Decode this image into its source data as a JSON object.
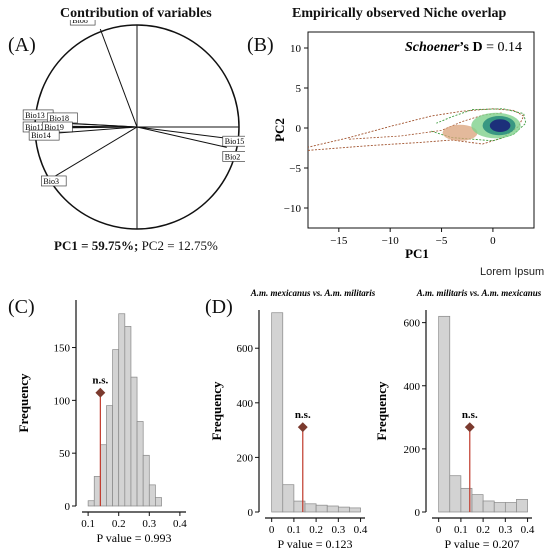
{
  "panels": {
    "a_letter": "(A)",
    "b_letter": "(B)",
    "c_letter": "(C)",
    "d_letter": "(D)"
  },
  "corner_label": "Lorem Ipsum",
  "chart_data": [
    {
      "type": "scatter",
      "title": "Contribution of variables",
      "variables": [
        {
          "name": "Bio8",
          "pc1": -0.36,
          "pc2": 0.96
        },
        {
          "name": "Bio13",
          "pc1": -0.92,
          "pc2": 0.05
        },
        {
          "name": "Bio18",
          "pc1": -0.8,
          "pc2": 0.04
        },
        {
          "name": "Bio12",
          "pc1": -0.94,
          "pc2": 0.01
        },
        {
          "name": "Bio19",
          "pc1": -0.83,
          "pc2": -0.01
        },
        {
          "name": "Bio14",
          "pc1": -0.92,
          "pc2": -0.07
        },
        {
          "name": "Bio15",
          "pc1": 0.88,
          "pc2": -0.11
        },
        {
          "name": "Bio2",
          "pc1": 0.88,
          "pc2": -0.2
        },
        {
          "name": "Bio3",
          "pc1": -0.8,
          "pc2": -0.48
        }
      ],
      "footer_pc1": "PC1 = 59.75%;",
      "footer_pc2": "PC2 = 12.75%"
    },
    {
      "type": "area",
      "title": "Empirically observed Niche overlap",
      "xlabel": "PC1",
      "ylabel": "PC2",
      "xlim": [
        -18,
        4
      ],
      "ylim": [
        -12.5,
        12
      ],
      "xticks": [
        -15,
        -10,
        -5,
        0
      ],
      "yticks": [
        10,
        5,
        0,
        -5,
        -10
      ],
      "annotation_name": "Schoener",
      "annotation_rest": "’s D",
      "annotation_value": "= 0.14",
      "colors": {
        "dark": "#1c2f7a",
        "mid": "#2e8f7e",
        "light": "#7fd18c",
        "orange": "#d9a27a",
        "outline_brown": "#a0522d",
        "outline_green": "#3a9a3a"
      }
    },
    {
      "type": "bar",
      "panel": "C",
      "bin_edges": [
        0.1,
        0.12,
        0.14,
        0.16,
        0.18,
        0.2,
        0.22,
        0.24,
        0.26,
        0.28,
        0.3,
        0.32,
        0.34
      ],
      "values": [
        5,
        28,
        58,
        95,
        148,
        182,
        170,
        122,
        80,
        48,
        20,
        8
      ],
      "xticks": [
        0.1,
        0.2,
        0.3,
        0.4
      ],
      "yticks": [
        0,
        50,
        100,
        150
      ],
      "ylim": [
        0,
        195
      ],
      "xlim": [
        0.08,
        0.42
      ],
      "observed": 0.14,
      "observed_label": "n.s.",
      "ylabel": "Frequency",
      "pvalue_label": "P value = 0.993"
    },
    {
      "type": "bar",
      "panel": "D1",
      "title_a": "A.m. mexicanus",
      "title_vs": " vs. ",
      "title_b": "A.m. militaris",
      "bin_edges": [
        0.0,
        0.05,
        0.1,
        0.15,
        0.2,
        0.25,
        0.3,
        0.35,
        0.4
      ],
      "values": [
        730,
        100,
        40,
        30,
        25,
        22,
        18,
        15
      ],
      "xticks": [
        0.0,
        0.1,
        0.2,
        0.3,
        0.4
      ],
      "yticks": [
        0,
        200,
        400,
        600
      ],
      "ylim": [
        0,
        740
      ],
      "xlim": [
        -0.03,
        0.42
      ],
      "observed": 0.14,
      "observed_label": "n.s.",
      "ylabel": "Frequency",
      "pvalue_label": "P value = 0.123"
    },
    {
      "type": "bar",
      "panel": "D2",
      "title_a": "A.m. militaris",
      "title_vs": " vs. ",
      "title_b": "A.m. mexicanus",
      "bin_edges": [
        0.0,
        0.05,
        0.1,
        0.15,
        0.2,
        0.25,
        0.3,
        0.35,
        0.4
      ],
      "values": [
        620,
        115,
        75,
        55,
        35,
        30,
        30,
        40
      ],
      "xticks": [
        0.0,
        0.1,
        0.2,
        0.3,
        0.4
      ],
      "yticks": [
        0,
        200,
        400,
        600
      ],
      "ylim": [
        0,
        640
      ],
      "xlim": [
        -0.03,
        0.42
      ],
      "observed": 0.14,
      "observed_label": "n.s.",
      "ylabel": "Frequency",
      "pvalue_label": "P value = 0.207"
    }
  ]
}
